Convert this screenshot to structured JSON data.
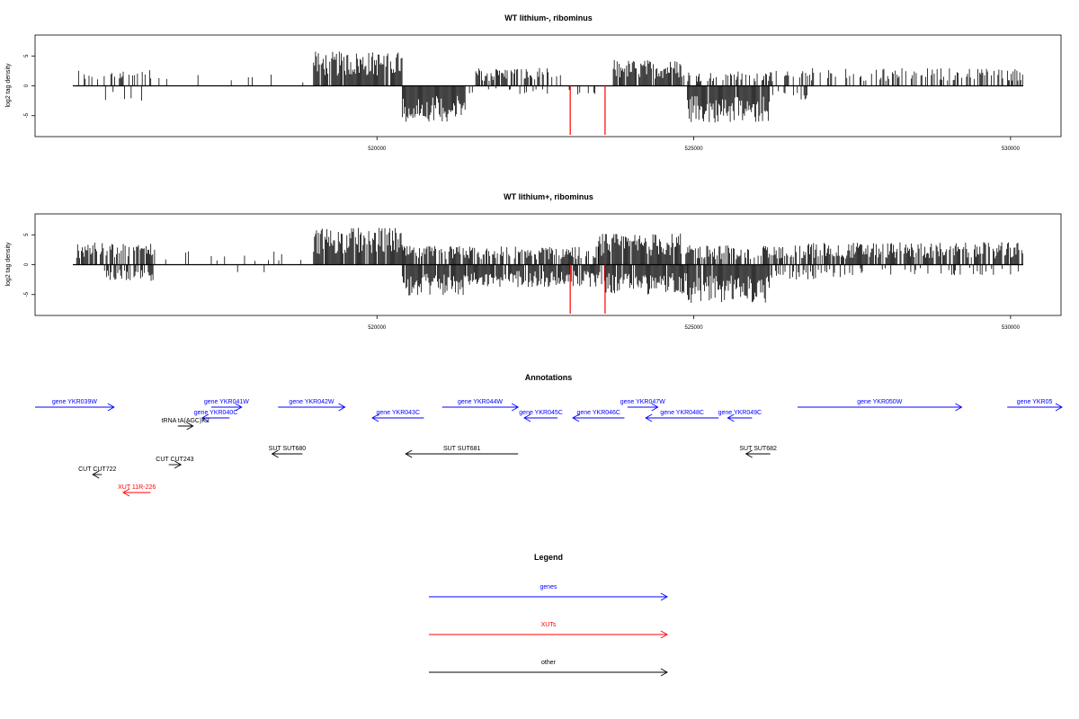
{
  "chart_data": [
    {
      "type": "bar",
      "title": "WT lithium-, ribominus",
      "ylabel": "log2 tag density",
      "xlabel": "",
      "xlim": [
        515000,
        530200
      ],
      "ylim": [
        -8.5,
        8.5
      ],
      "x_ticks": [
        520000,
        525000,
        530000
      ],
      "y_ticks": [
        -5,
        0,
        5
      ],
      "grid": false,
      "series": [
        {
          "strand": "plus",
          "color": "#000000",
          "segments": [
            {
              "start": 515200,
              "end": 516500,
              "y": 2.2,
              "density": 0.3
            },
            {
              "start": 516500,
              "end": 518500,
              "y": 2.0,
              "density": 0.08
            },
            {
              "start": 518500,
              "end": 519000,
              "y": 1.0,
              "density": 0.05
            },
            {
              "start": 519000,
              "end": 520400,
              "y": 4.6,
              "density": 0.95
            },
            {
              "start": 521500,
              "end": 522900,
              "y": 2.4,
              "density": 0.6
            },
            {
              "start": 523700,
              "end": 524800,
              "y": 3.5,
              "density": 0.85
            },
            {
              "start": 524800,
              "end": 526800,
              "y": 2.0,
              "density": 0.35
            },
            {
              "start": 526800,
              "end": 530200,
              "y": 2.4,
              "density": 0.4
            }
          ]
        },
        {
          "strand": "minus",
          "color": "#000000",
          "segments": [
            {
              "start": 515700,
              "end": 516500,
              "y": -2.0,
              "density": 0.1
            },
            {
              "start": 517800,
              "end": 518300,
              "y": -2.0,
              "density": 0.05
            },
            {
              "start": 520400,
              "end": 521400,
              "y": -4.8,
              "density": 0.95
            },
            {
              "start": 521400,
              "end": 523500,
              "y": -1.2,
              "density": 0.12
            },
            {
              "start": 524900,
              "end": 526200,
              "y": -5.0,
              "density": 0.95
            },
            {
              "start": 526200,
              "end": 526800,
              "y": -2.0,
              "density": 0.4
            }
          ]
        },
        {
          "strand": "minus",
          "color": "#ff0000",
          "points": [
            {
              "x": 523050,
              "y": -8.2
            },
            {
              "x": 523600,
              "y": -8.2
            }
          ]
        }
      ]
    },
    {
      "type": "bar",
      "title": "WT lithium+, ribominus",
      "ylabel": "log2 tag density",
      "xlabel": "",
      "xlim": [
        515000,
        530200
      ],
      "ylim": [
        -8.5,
        8.5
      ],
      "x_ticks": [
        520000,
        525000,
        530000
      ],
      "y_ticks": [
        -5,
        0,
        5
      ],
      "grid": false,
      "series": [
        {
          "strand": "plus",
          "color": "#000000",
          "segments": [
            {
              "start": 515200,
              "end": 516500,
              "y": 3.0,
              "density": 0.6
            },
            {
              "start": 516500,
              "end": 518500,
              "y": 1.8,
              "density": 0.08
            },
            {
              "start": 518500,
              "end": 519000,
              "y": 1.5,
              "density": 0.08
            },
            {
              "start": 519000,
              "end": 520400,
              "y": 5.0,
              "density": 0.95
            },
            {
              "start": 520400,
              "end": 523500,
              "y": 2.5,
              "density": 0.75
            },
            {
              "start": 523500,
              "end": 524800,
              "y": 4.2,
              "density": 0.95
            },
            {
              "start": 524800,
              "end": 526800,
              "y": 2.6,
              "density": 0.6
            },
            {
              "start": 526800,
              "end": 530200,
              "y": 3.0,
              "density": 0.8
            }
          ]
        },
        {
          "strand": "minus",
          "color": "#000000",
          "segments": [
            {
              "start": 515700,
              "end": 516500,
              "y": -2.2,
              "density": 0.55
            },
            {
              "start": 517800,
              "end": 518300,
              "y": -2.0,
              "density": 0.08
            },
            {
              "start": 520400,
              "end": 521400,
              "y": -4.2,
              "density": 0.95
            },
            {
              "start": 521400,
              "end": 523600,
              "y": -3.0,
              "density": 0.85
            },
            {
              "start": 523600,
              "end": 524900,
              "y": -4.0,
              "density": 0.95
            },
            {
              "start": 524900,
              "end": 526200,
              "y": -5.2,
              "density": 0.95
            },
            {
              "start": 526200,
              "end": 527600,
              "y": -2.0,
              "density": 0.35
            },
            {
              "start": 527600,
              "end": 530200,
              "y": -1.5,
              "density": 0.15
            }
          ]
        },
        {
          "strand": "minus",
          "color": "#ff0000",
          "points": [
            {
              "x": 523050,
              "y": -8.2
            },
            {
              "x": 523600,
              "y": -8.2
            }
          ]
        }
      ]
    }
  ],
  "annotations": {
    "title": "Annotations",
    "items": [
      {
        "label": "gene YKR039W",
        "start": 515000,
        "end": 516300,
        "strand": "+",
        "color": "#0000ff",
        "row": 0
      },
      {
        "label": "gene YKR041W",
        "start": 517900,
        "end": 518400,
        "strand": "+",
        "color": "#0000ff",
        "row": 0
      },
      {
        "label": "gene YKR040C",
        "start": 517750,
        "end": 518200,
        "strand": "-",
        "color": "#0000ff",
        "row": 1
      },
      {
        "label": "tRNA tA(AGC)K2",
        "start": 517350,
        "end": 517600,
        "strand": "+",
        "color": "#000000",
        "row": 2
      },
      {
        "label": "gene YKR042W",
        "start": 519000,
        "end": 520100,
        "strand": "+",
        "color": "#0000ff",
        "row": 0
      },
      {
        "label": "gene YKR043C",
        "start": 520550,
        "end": 521400,
        "strand": "-",
        "color": "#0000ff",
        "row": 1
      },
      {
        "label": "gene YKR044W",
        "start": 521700,
        "end": 522950,
        "strand": "+",
        "color": "#0000ff",
        "row": 0
      },
      {
        "label": "gene YKR045C",
        "start": 523050,
        "end": 523600,
        "strand": "-",
        "color": "#0000ff",
        "row": 1
      },
      {
        "label": "gene YKR046C",
        "start": 523850,
        "end": 524700,
        "strand": "-",
        "color": "#0000ff",
        "row": 1
      },
      {
        "label": "gene YKR047W",
        "start": 524750,
        "end": 525250,
        "strand": "+",
        "color": "#0000ff",
        "row": 0
      },
      {
        "label": "gene YKR048C",
        "start": 525050,
        "end": 526250,
        "strand": "-",
        "color": "#0000ff",
        "row": 1
      },
      {
        "label": "gene YKR049C",
        "start": 526400,
        "end": 526800,
        "strand": "-",
        "color": "#0000ff",
        "row": 1
      },
      {
        "label": "gene YKR050W",
        "start": 527550,
        "end": 530250,
        "strand": "+",
        "color": "#0000ff",
        "row": 0
      },
      {
        "label": "gene YKR05",
        "start": 531000,
        "end": 531900,
        "strand": "+",
        "color": "#0000ff",
        "row": 0
      },
      {
        "label": "SUT SUT680",
        "start": 518900,
        "end": 519400,
        "strand": "-",
        "color": "#000000",
        "row": 3
      },
      {
        "label": "SUT SUT681",
        "start": 521100,
        "end": 522950,
        "strand": "-",
        "color": "#000000",
        "row": 3
      },
      {
        "label": "SUT SUT682",
        "start": 526700,
        "end": 527100,
        "strand": "-",
        "color": "#000000",
        "row": 3
      },
      {
        "label": "CUT CUT243",
        "start": 517200,
        "end": 517400,
        "strand": "+",
        "color": "#000000",
        "row": 4
      },
      {
        "label": "CUT CUT722",
        "start": 515950,
        "end": 516100,
        "strand": "-",
        "color": "#000000",
        "row": 5
      },
      {
        "label": "XUT 11R-226",
        "start": 516450,
        "end": 516900,
        "strand": "-",
        "color": "#ff0000",
        "row": 6
      }
    ]
  },
  "legend": {
    "title": "Legend",
    "entries": [
      {
        "label": "genes",
        "color": "#0000ff"
      },
      {
        "label": "XUTs",
        "color": "#ff0000"
      },
      {
        "label": "other",
        "color": "#000000"
      }
    ]
  }
}
